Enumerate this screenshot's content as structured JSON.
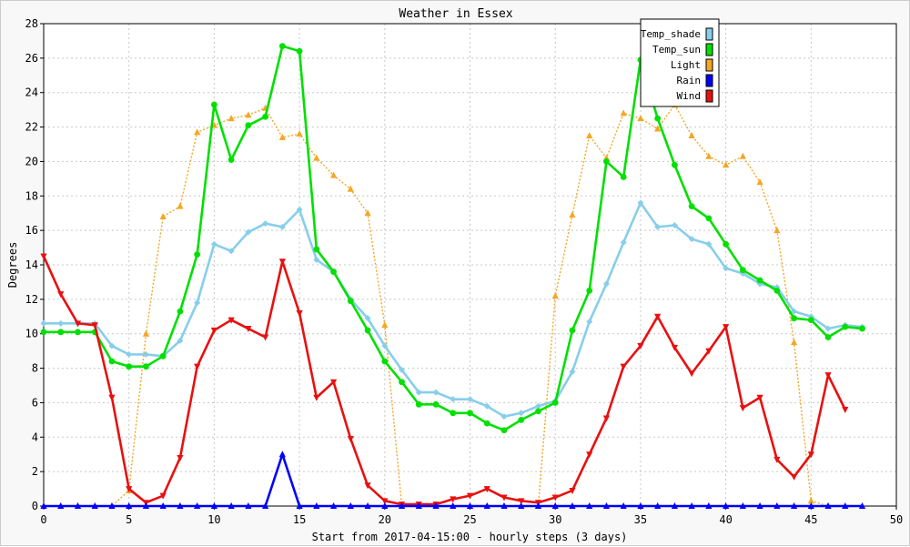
{
  "chart_data": {
    "type": "line",
    "title": "Weather in Essex",
    "xlabel": "Start from 2017-04-15:00 - hourly steps (3 days)",
    "ylabel": "Degrees",
    "xlim": [
      0,
      50
    ],
    "ylim": [
      0,
      28
    ],
    "x_ticks": [
      0,
      5,
      10,
      15,
      20,
      25,
      30,
      35,
      40,
      45,
      50
    ],
    "y_ticks": [
      0,
      2,
      4,
      6,
      8,
      10,
      12,
      14,
      16,
      18,
      20,
      22,
      24,
      26,
      28
    ],
    "grid": true,
    "legend_position": "top-right",
    "series": [
      {
        "name": "Temp_shade",
        "color": "#87ceeb",
        "marker": "diamond",
        "dashed": false,
        "x": [
          0,
          1,
          2,
          3,
          4,
          5,
          6,
          7,
          8,
          9,
          10,
          11,
          12,
          13,
          14,
          15,
          16,
          17,
          18,
          19,
          20,
          21,
          22,
          23,
          24,
          25,
          26,
          27,
          28,
          29,
          30,
          31,
          32,
          33,
          34,
          35,
          36,
          37,
          38,
          39,
          40,
          41,
          42,
          43,
          44,
          45,
          46,
          47,
          48
        ],
        "values": [
          10.6,
          10.6,
          10.6,
          10.6,
          9.3,
          8.8,
          8.8,
          8.7,
          9.6,
          11.8,
          15.2,
          14.8,
          15.9,
          16.4,
          16.2,
          17.2,
          14.3,
          13.6,
          12.0,
          10.9,
          9.3,
          7.9,
          6.6,
          6.6,
          6.2,
          6.2,
          5.8,
          5.2,
          5.4,
          5.8,
          6.1,
          7.8,
          10.7,
          12.9,
          15.3,
          17.6,
          16.2,
          16.3,
          15.5,
          15.2,
          13.8,
          13.5,
          12.9,
          12.7,
          11.3,
          11.0,
          10.3,
          10.5,
          10.4
        ]
      },
      {
        "name": "Temp_sun",
        "color": "#00e000",
        "marker": "circle",
        "dashed": false,
        "x": [
          0,
          1,
          2,
          3,
          4,
          5,
          6,
          7,
          8,
          9,
          10,
          11,
          12,
          13,
          14,
          15,
          16,
          17,
          18,
          19,
          20,
          21,
          22,
          23,
          24,
          25,
          26,
          27,
          28,
          29,
          30,
          31,
          32,
          33,
          34,
          35,
          36,
          37,
          38,
          39,
          40,
          41,
          42,
          43,
          44,
          45,
          46,
          47,
          48
        ],
        "values": [
          10.1,
          10.1,
          10.1,
          10.1,
          8.4,
          8.1,
          8.1,
          8.7,
          11.3,
          14.6,
          23.3,
          20.1,
          22.1,
          22.6,
          26.7,
          26.4,
          14.9,
          13.6,
          11.9,
          10.2,
          8.4,
          7.2,
          5.9,
          5.9,
          5.4,
          5.4,
          4.8,
          4.4,
          5.0,
          5.5,
          6.0,
          10.2,
          12.5,
          20.0,
          19.1,
          25.9,
          22.5,
          19.8,
          17.4,
          16.7,
          15.2,
          13.7,
          13.1,
          12.5,
          10.9,
          10.8,
          9.8,
          10.4,
          10.3
        ]
      },
      {
        "name": "Light",
        "color": "#f5a623",
        "marker": "triangle-up",
        "dashed": true,
        "x": [
          0,
          1,
          2,
          3,
          4,
          5,
          6,
          7,
          8,
          9,
          10,
          11,
          12,
          13,
          14,
          15,
          16,
          17,
          18,
          19,
          20,
          21,
          22,
          23,
          24,
          25,
          26,
          27,
          28,
          29,
          30,
          31,
          32,
          33,
          34,
          35,
          36,
          37,
          38,
          39,
          40,
          41,
          42,
          43,
          44,
          45,
          46
        ],
        "values": [
          0,
          0,
          0,
          0,
          0,
          0.9,
          10.0,
          16.8,
          17.4,
          21.7,
          22.1,
          22.5,
          22.7,
          23.1,
          21.4,
          21.6,
          20.2,
          19.2,
          18.4,
          17.0,
          10.5,
          0,
          0,
          0,
          0,
          0,
          0,
          0,
          0,
          0,
          12.2,
          16.9,
          21.5,
          20.2,
          22.8,
          22.5,
          21.9,
          23.3,
          21.5,
          20.3,
          19.8,
          20.3,
          18.8,
          16.0,
          9.5,
          0.3,
          0
        ]
      },
      {
        "name": "Rain",
        "color": "#0000ff",
        "marker": "triangle-up",
        "dashed": false,
        "x": [
          0,
          1,
          2,
          3,
          4,
          5,
          6,
          7,
          8,
          9,
          10,
          11,
          12,
          13,
          14,
          15,
          16,
          17,
          18,
          19,
          20,
          21,
          22,
          23,
          24,
          25,
          26,
          27,
          28,
          29,
          30,
          31,
          32,
          33,
          34,
          35,
          36,
          37,
          38,
          39,
          40,
          41,
          42,
          43,
          44,
          45,
          46,
          47,
          48
        ],
        "values": [
          0,
          0,
          0,
          0,
          0,
          0,
          0,
          0,
          0,
          0,
          0,
          0,
          0,
          0,
          3.0,
          0,
          0,
          0,
          0,
          0,
          0,
          0,
          0,
          0,
          0,
          0,
          0,
          0,
          0,
          0,
          0,
          0,
          0,
          0,
          0,
          0,
          0,
          0,
          0,
          0,
          0,
          0,
          0,
          0,
          0,
          0,
          0,
          0,
          0
        ]
      },
      {
        "name": "Wind",
        "color": "#e81010",
        "marker": "triangle-down",
        "dashed": false,
        "x": [
          0,
          1,
          2,
          3,
          4,
          5,
          6,
          7,
          8,
          9,
          10,
          11,
          12,
          13,
          14,
          15,
          16,
          17,
          18,
          19,
          20,
          21,
          22,
          23,
          24,
          25,
          26,
          27,
          28,
          29,
          30,
          31,
          32,
          33,
          34,
          35,
          36,
          37,
          38,
          39,
          40,
          41,
          42,
          43,
          44,
          45,
          46,
          47
        ],
        "values": [
          14.5,
          12.3,
          10.6,
          10.5,
          6.3,
          1.0,
          0.2,
          0.6,
          2.8,
          8.1,
          10.2,
          10.8,
          10.3,
          9.8,
          14.2,
          11.2,
          6.3,
          7.2,
          3.9,
          1.2,
          0.3,
          0.1,
          0.1,
          0.1,
          0.4,
          0.6,
          1.0,
          0.5,
          0.3,
          0.2,
          0.5,
          0.9,
          3.0,
          5.1,
          8.1,
          9.3,
          11.0,
          9.2,
          7.7,
          9.0,
          10.4,
          5.7,
          6.3,
          2.7,
          1.7,
          3.0,
          7.6,
          5.6
        ]
      }
    ]
  }
}
